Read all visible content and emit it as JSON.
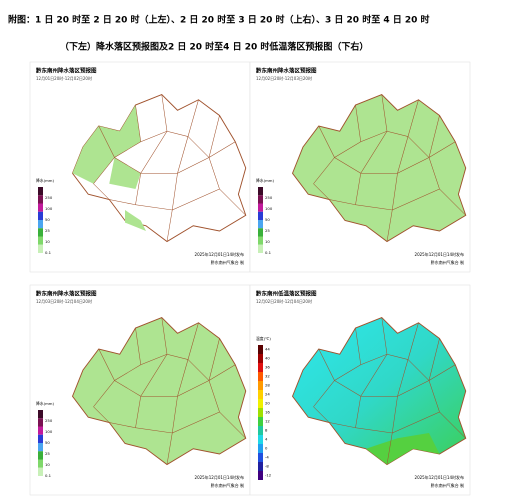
{
  "caption": {
    "line1": "附图：1 日 20 时至 2 日 20 时（上左）、2 日 20 时至 3 日 20 时（上右）、3 日 20 时至 4 日 20 时",
    "line2": "（下左）降水落区预报图及2 日 20 时至4 日 20 时低温落区预报图（下右）"
  },
  "panels": [
    {
      "title": "黔东南州降水落区预报图",
      "period": "12月01日20时-12月02日20时",
      "issued": "2025年12月01日14时发布",
      "issuer": "黔东南州气象台 制",
      "legend_title": "降水(mm)",
      "legend_labels": [
        250,
        100,
        50,
        25,
        10,
        0.1
      ]
    },
    {
      "title": "黔东南州降水落区预报图",
      "period": "12月02日20时-12月03日20时",
      "issued": "2025年12月01日14时发布",
      "issuer": "黔东南州气象台 制",
      "legend_title": "降水(mm)",
      "legend_labels": [
        250,
        100,
        50,
        25,
        10,
        0.1
      ]
    },
    {
      "title": "黔东南州降水落区预报图",
      "period": "12月03日20时-12月04日20时",
      "issued": "2025年12月01日14时发布",
      "issuer": "黔东南州气象台 制",
      "legend_title": "降水(mm)",
      "legend_labels": [
        250,
        100,
        50,
        25,
        10,
        0.1
      ]
    },
    {
      "title": "黔东南州低温落区预报图",
      "period": "12月02日20时-12月04日20时",
      "issued": "2025年12月01日14时发布",
      "issuer": "黔东南州气象台 制",
      "legend_title": "温度(℃)",
      "legend_labels": [
        44,
        40,
        36,
        32,
        28,
        24,
        20,
        16,
        12,
        8,
        4,
        0,
        -4,
        -8,
        -12
      ]
    }
  ]
}
